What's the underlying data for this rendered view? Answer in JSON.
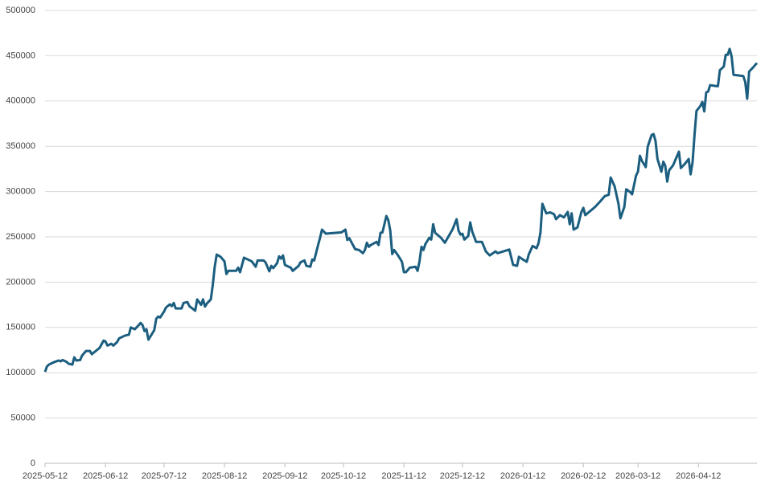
{
  "chart_data": {
    "type": "line",
    "x": [
      "2025-05-12",
      "2025-05-13",
      "2025-05-14",
      "2025-05-15",
      "2025-05-17",
      "2025-05-19",
      "2025-05-20",
      "2025-05-21",
      "2025-05-23",
      "2025-05-24",
      "2025-05-26",
      "2025-05-27",
      "2025-05-28",
      "2025-05-30",
      "2025-05-31",
      "2025-06-02",
      "2025-06-04",
      "2025-06-05",
      "2025-06-07",
      "2025-06-09",
      "2025-06-11",
      "2025-06-12",
      "2025-06-13",
      "2025-06-15",
      "2025-06-16",
      "2025-06-18",
      "2025-06-19",
      "2025-06-22",
      "2025-06-24",
      "2025-06-25",
      "2025-06-27",
      "2025-06-29",
      "2025-06-30",
      "2025-07-01",
      "2025-07-02",
      "2025-07-03",
      "2025-07-04",
      "2025-07-06",
      "2025-07-07",
      "2025-07-08",
      "2025-07-09",
      "2025-07-10",
      "2025-07-12",
      "2025-07-13",
      "2025-07-15",
      "2025-07-16",
      "2025-07-17",
      "2025-07-18",
      "2025-07-21",
      "2025-07-22",
      "2025-07-24",
      "2025-07-25",
      "2025-07-28",
      "2025-07-29",
      "2025-07-31",
      "2025-08-01",
      "2025-08-02",
      "2025-08-03",
      "2025-08-05",
      "2025-08-06",
      "2025-08-07",
      "2025-08-08",
      "2025-08-10",
      "2025-08-12",
      "2025-08-13",
      "2025-08-14",
      "2025-08-18",
      "2025-08-19",
      "2025-08-20",
      "2025-08-22",
      "2025-08-24",
      "2025-08-26",
      "2025-08-28",
      "2025-08-29",
      "2025-09-01",
      "2025-09-02",
      "2025-09-04",
      "2025-09-05",
      "2025-09-06",
      "2025-09-08",
      "2025-09-09",
      "2025-09-10",
      "2025-09-11",
      "2025-09-12",
      "2025-09-15",
      "2025-09-16",
      "2025-09-19",
      "2025-09-20",
      "2025-09-22",
      "2025-09-23",
      "2025-09-25",
      "2025-09-26",
      "2025-09-27",
      "2025-09-29",
      "2025-09-30",
      "2025-10-01",
      "2025-10-03",
      "2025-10-11",
      "2025-10-13",
      "2025-10-14",
      "2025-10-15",
      "2025-10-18",
      "2025-10-20",
      "2025-10-22",
      "2025-10-23",
      "2025-10-24",
      "2025-10-25",
      "2025-10-26",
      "2025-10-29",
      "2025-10-30",
      "2025-10-31",
      "2025-11-01",
      "2025-11-02",
      "2025-11-03",
      "2025-11-04",
      "2025-11-05",
      "2025-11-06",
      "2025-11-07",
      "2025-11-09",
      "2025-11-11",
      "2025-11-12",
      "2025-11-13",
      "2025-11-15",
      "2025-11-18",
      "2025-11-19",
      "2025-11-20",
      "2025-11-21",
      "2025-11-22",
      "2025-11-23",
      "2025-11-25",
      "2025-11-26",
      "2025-11-27",
      "2025-11-28",
      "2025-12-01",
      "2025-12-03",
      "2025-12-05",
      "2025-12-07",
      "2025-12-09",
      "2025-12-10",
      "2025-12-11",
      "2025-12-12",
      "2025-12-13",
      "2025-12-15",
      "2025-12-16",
      "2025-12-17",
      "2025-12-19",
      "2025-12-22",
      "2025-12-24",
      "2025-12-26",
      "2025-12-29",
      "2025-12-30",
      "2026-01-05",
      "2026-01-07",
      "2026-01-09",
      "2026-01-10",
      "2026-01-12",
      "2026-01-14",
      "2026-01-15",
      "2026-01-17",
      "2026-01-19",
      "2026-01-20",
      "2026-01-21",
      "2026-01-22",
      "2026-01-24",
      "2026-01-26",
      "2026-01-28",
      "2026-01-29",
      "2026-01-31",
      "2026-02-02",
      "2026-02-04",
      "2026-02-05",
      "2026-02-06",
      "2026-02-07",
      "2026-02-09",
      "2026-02-11",
      "2026-02-12",
      "2026-02-13",
      "2026-02-18",
      "2026-02-21",
      "2026-02-23",
      "2026-02-25",
      "2026-02-26",
      "2026-02-28",
      "2026-03-02",
      "2026-03-03",
      "2026-03-05",
      "2026-03-06",
      "2026-03-08",
      "2026-03-09",
      "2026-03-11",
      "2026-03-12",
      "2026-03-13",
      "2026-03-14",
      "2026-03-16",
      "2026-03-17",
      "2026-03-19",
      "2026-03-20",
      "2026-03-21",
      "2026-03-22",
      "2026-03-24",
      "2026-03-25",
      "2026-03-26",
      "2026-03-27",
      "2026-03-28",
      "2026-03-30",
      "2026-03-31",
      "2026-04-02",
      "2026-04-03",
      "2026-04-05",
      "2026-04-07",
      "2026-04-08",
      "2026-04-09",
      "2026-04-10",
      "2026-04-11",
      "2026-04-13",
      "2026-04-14",
      "2026-04-15",
      "2026-04-16",
      "2026-04-17",
      "2026-04-18",
      "2026-04-21",
      "2026-04-22",
      "2026-04-23",
      "2026-04-25",
      "2026-04-26",
      "2026-04-27",
      "2026-04-28",
      "2026-04-29",
      "2026-04-30",
      "2026-05-05",
      "2026-05-06",
      "2026-05-07",
      "2026-05-08",
      "2026-05-10",
      "2026-05-12"
    ],
    "series": [
      {
        "color": "#1b5e7f",
        "values": [
          101000,
          107000,
          109000,
          110000,
          112000,
          113500,
          112600,
          114000,
          112000,
          110000,
          109000,
          117000,
          113500,
          114000,
          119000,
          124000,
          124000,
          120500,
          124000,
          127500,
          135500,
          134500,
          130000,
          132000,
          130000,
          134000,
          138000,
          141000,
          142000,
          150000,
          148000,
          152500,
          155000,
          152500,
          146000,
          148000,
          136500,
          143500,
          147000,
          159500,
          162000,
          161000,
          167500,
          172000,
          175500,
          173500,
          177000,
          171000,
          171000,
          177000,
          178000,
          173500,
          168500,
          181000,
          175000,
          181000,
          173000,
          176500,
          181000,
          197000,
          217000,
          230500,
          228000,
          223000,
          209000,
          212500,
          212500,
          216000,
          211000,
          227000,
          225000,
          223000,
          217000,
          224000,
          224000,
          222000,
          212000,
          218000,
          215500,
          221000,
          228500,
          226000,
          229500,
          219000,
          216000,
          212500,
          218000,
          222000,
          224000,
          218000,
          217000,
          225000,
          224000,
          241000,
          249000,
          258000,
          253500,
          255000,
          258000,
          246500,
          248500,
          236500,
          235500,
          232000,
          235500,
          243500,
          239000,
          241000,
          244500,
          241000,
          254500,
          255000,
          264000,
          273000,
          268500,
          257000,
          231000,
          235500,
          229500,
          222500,
          211000,
          211000,
          216000,
          217000,
          212500,
          223000,
          239000,
          235500,
          242000,
          249000,
          247000,
          264000,
          254500,
          249000,
          243500,
          251000,
          258500,
          269500,
          257000,
          252500,
          253500,
          247000,
          251000,
          266000,
          256000,
          244500,
          244500,
          234000,
          229500,
          234000,
          232000,
          236000,
          219000,
          218000,
          228000,
          225000,
          222500,
          230500,
          240000,
          237500,
          243000,
          254500,
          286500,
          276000,
          277000,
          275000,
          269500,
          274000,
          271500,
          277500,
          264000,
          276000,
          258000,
          260500,
          277500,
          282000,
          274000,
          283000,
          290000,
          295000,
          296500,
          315500,
          306000,
          286500,
          270500,
          283000,
          302500,
          299500,
          297000,
          317500,
          322000,
          339500,
          334000,
          327000,
          349500,
          362500,
          363500,
          356000,
          336000,
          322000,
          333000,
          328500,
          311000,
          323500,
          329000,
          334000,
          344000,
          326000,
          330500,
          336000,
          319000,
          332500,
          362500,
          389000,
          394500,
          399000,
          388500,
          409500,
          410500,
          417500,
          416500,
          416500,
          434000,
          438000,
          451000,
          451000,
          457500,
          449500,
          429000,
          427500,
          421000,
          402500,
          432500,
          437000,
          442000
        ]
      }
    ],
    "xlim": [
      "2025-05-12",
      "2026-05-12"
    ],
    "xticks": [
      "2025-05-12",
      "2025-06-12",
      "2025-07-12",
      "2025-08-12",
      "2025-09-12",
      "2025-10-12",
      "2025-11-12",
      "2025-12-12",
      "2026-01-12",
      "2026-02-12",
      "2026-03-12",
      "2026-04-12"
    ],
    "ylim": [
      0,
      500000
    ],
    "yticks": [
      0,
      50000,
      100000,
      150000,
      200000,
      250000,
      300000,
      350000,
      400000,
      450000,
      500000
    ],
    "grid": true
  }
}
